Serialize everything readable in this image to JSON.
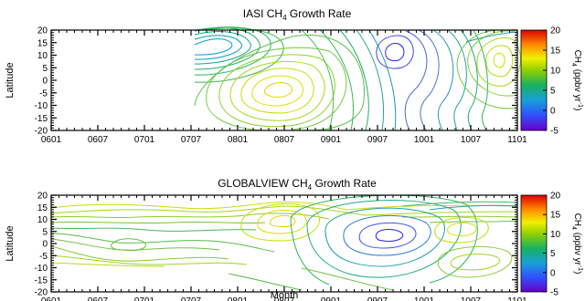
{
  "chart_data": [
    {
      "type": "contour",
      "title_main": "IASI CH",
      "title_sub": "4",
      "title_rest": " Growth Rate",
      "ylabel": "Latitude",
      "xlabel": "",
      "x_ticks": [
        "0601",
        "0607",
        "0701",
        "0707",
        "0801",
        "0807",
        "0901",
        "0907",
        "1001",
        "1007",
        "1101"
      ],
      "y_ticks": [
        "20",
        "15",
        "10",
        "5",
        "0",
        "-5",
        "-10",
        "-15",
        "-20"
      ],
      "xlim": [
        "0601",
        "1101"
      ],
      "ylim": [
        -20,
        20
      ],
      "data_start": "0708",
      "colorbar": {
        "ticks": [
          "20",
          "15",
          "10",
          "5",
          "0",
          "-5"
        ],
        "range": [
          -5,
          20
        ],
        "label_main": "CH",
        "label_sub": "4",
        "label_units": " (ppbv yr",
        "label_exp": "-1",
        "label_close": ")"
      },
      "features": [
        {
          "kind": "high",
          "x": "0710",
          "lat": 8,
          "value": 6
        },
        {
          "kind": "high",
          "x": "0809",
          "lat": -6,
          "value": 13
        },
        {
          "kind": "low",
          "x": "0910",
          "lat": 7,
          "value": -2
        },
        {
          "kind": "high",
          "x": "1009",
          "lat": 2,
          "value": 11
        }
      ]
    },
    {
      "type": "contour",
      "title_main": "GLOBALVIEW CH",
      "title_sub": "4",
      "title_rest": " Growth Rate",
      "ylabel": "Latitude",
      "xlabel": "Month",
      "x_ticks": [
        "0601",
        "0607",
        "0701",
        "0707",
        "0801",
        "0807",
        "0901",
        "0907",
        "1001",
        "1007",
        "1101"
      ],
      "y_ticks": [
        "20",
        "15",
        "10",
        "5",
        "0",
        "-5",
        "-10",
        "-15",
        "-20"
      ],
      "xlim": [
        "0601",
        "1101"
      ],
      "ylim": [
        -20,
        20
      ],
      "colorbar": {
        "ticks": [
          "20",
          "15",
          "10",
          "5",
          "0",
          "-5"
        ],
        "range": [
          -5,
          20
        ],
        "label_main": "CH",
        "label_sub": "4",
        "label_units": " (ppbv yr",
        "label_exp": "-1",
        "label_close": ")"
      },
      "features": [
        {
          "kind": "high",
          "x": "0809",
          "lat": 3,
          "value": 13
        },
        {
          "kind": "low",
          "x": "0910",
          "lat": 2,
          "value": 2
        },
        {
          "kind": "high",
          "x": "1004",
          "lat": 3,
          "value": 11
        },
        {
          "kind": "low",
          "x": "0704",
          "lat": -12,
          "value": 5
        }
      ]
    }
  ]
}
